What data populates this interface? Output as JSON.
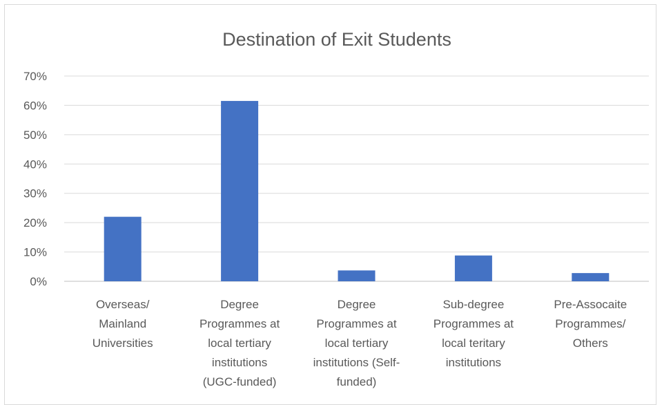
{
  "chart_data": {
    "type": "bar",
    "title": "Destination of Exit Students",
    "xlabel": "",
    "ylabel": "",
    "ylim": [
      0,
      0.7
    ],
    "yticks": [
      {
        "value": 0.0,
        "label": "0%"
      },
      {
        "value": 0.1,
        "label": "10%"
      },
      {
        "value": 0.2,
        "label": "20%"
      },
      {
        "value": 0.3,
        "label": "30%"
      },
      {
        "value": 0.4,
        "label": "40%"
      },
      {
        "value": 0.5,
        "label": "50%"
      },
      {
        "value": 0.6,
        "label": "60%"
      },
      {
        "value": 0.7,
        "label": "70%"
      }
    ],
    "categories": [
      [
        "Overseas/",
        "Mainland",
        "Universities"
      ],
      [
        "Degree",
        "Programmes at",
        "local tertiary",
        "institutions",
        "(UGC-funded)"
      ],
      [
        "Degree",
        "Programmes at",
        "local tertiary",
        "institutions (Self-",
        "funded)"
      ],
      [
        "Sub-degree",
        "Programmes at",
        "local teritary",
        "institutions"
      ],
      [
        "Pre-Assocaite",
        "Programmes/",
        "Others"
      ]
    ],
    "values": [
      0.22,
      0.615,
      0.037,
      0.088,
      0.028
    ],
    "bar_color": "#4472C4",
    "grid": true,
    "legend": "none"
  }
}
